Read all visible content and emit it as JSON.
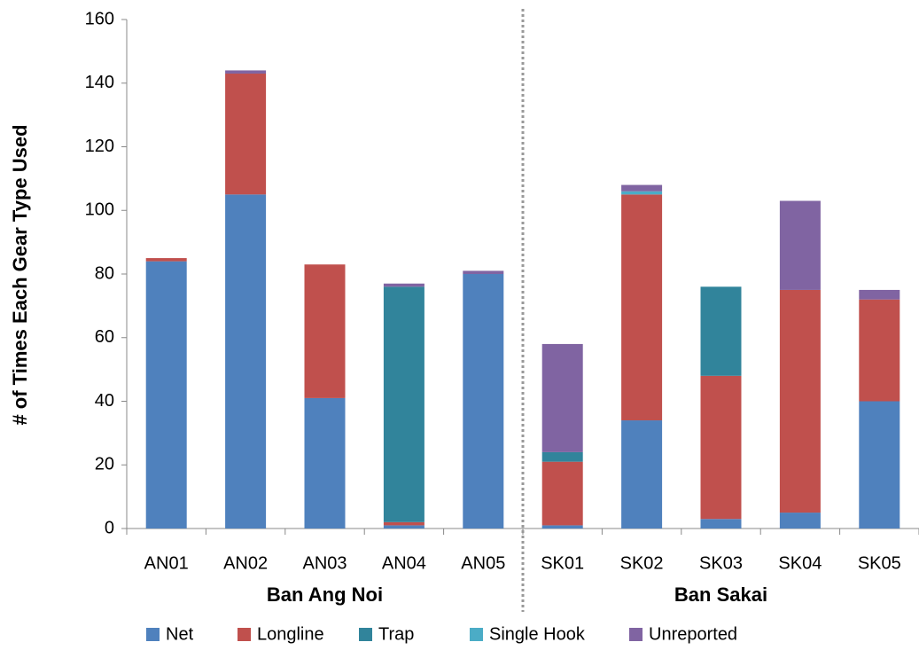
{
  "chart_data": {
    "type": "stacked_bar",
    "y_label": "# of Times Each Gear Type Used",
    "categories": [
      "AN01",
      "AN02",
      "AN03",
      "AN04",
      "AN05",
      "SK01",
      "SK02",
      "SK03",
      "SK04",
      "SK05"
    ],
    "group_labels": [
      "Ban Ang Noi",
      "Ban Sakai"
    ],
    "series": [
      {
        "name": "Net",
        "color": "#4f81bd",
        "values": [
          84,
          105,
          41,
          1,
          80,
          1,
          34,
          3,
          5,
          40
        ]
      },
      {
        "name": "Longline",
        "color": "#c0504d",
        "values": [
          1,
          38,
          42,
          1,
          0,
          20,
          71,
          45,
          70,
          32
        ]
      },
      {
        "name": "Trap",
        "color": "#31849b",
        "values": [
          0,
          0,
          0,
          74,
          0,
          3,
          0,
          28,
          0,
          0
        ]
      },
      {
        "name": "Single Hook",
        "color": "#4bacc6",
        "values": [
          0,
          0,
          0,
          0,
          0,
          0,
          1,
          0,
          0,
          0
        ]
      },
      {
        "name": "Unreported",
        "color": "#8064a2",
        "values": [
          0,
          1,
          0,
          1,
          1,
          34,
          2,
          0,
          28,
          3
        ]
      }
    ],
    "ylim": [
      0,
      160
    ],
    "yticks": [
      0,
      20,
      40,
      60,
      80,
      100,
      120,
      140,
      160
    ],
    "grid": false
  }
}
